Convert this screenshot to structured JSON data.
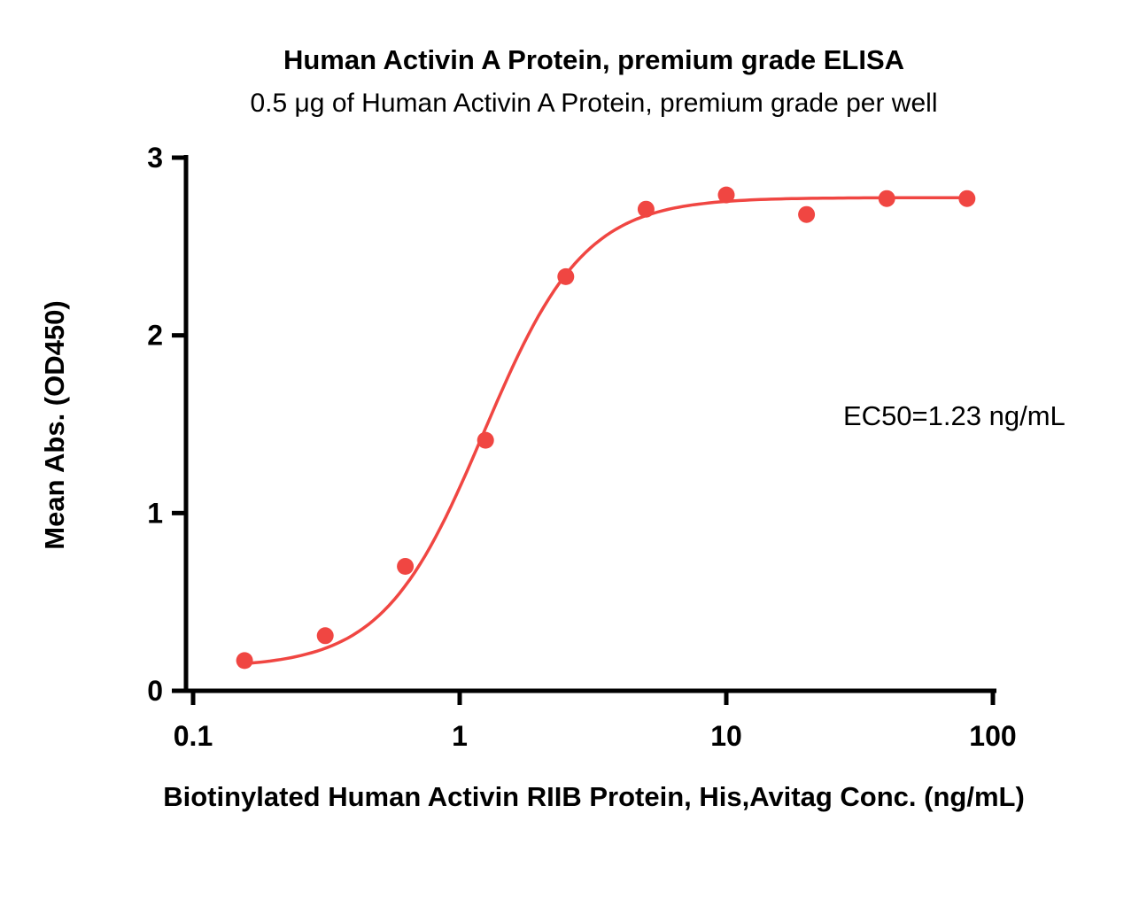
{
  "chart_data": {
    "type": "scatter",
    "title": "Human Activin A Protein, premium grade ELISA",
    "subtitle": "0.5 μg of Human Activin A Protein, premium grade per well",
    "xlabel": "Biotinylated Human Activin RIIB Protein, His,Avitag Conc. (ng/mL)",
    "ylabel": "Mean Abs. (OD450)",
    "annotation": "EC50=1.23 ng/mL",
    "x_scale": "log",
    "xlim": [
      0.1,
      100
    ],
    "ylim": [
      0,
      3
    ],
    "x_ticks": [
      0.1,
      1,
      10,
      100
    ],
    "x_tick_labels": [
      "0.1",
      "1",
      "10",
      "100"
    ],
    "y_ticks": [
      0,
      1,
      2,
      3
    ],
    "y_tick_labels": [
      "0",
      "1",
      "2",
      "3"
    ],
    "points": [
      {
        "x": 0.156,
        "y": 0.17
      },
      {
        "x": 0.313,
        "y": 0.31
      },
      {
        "x": 0.625,
        "y": 0.7
      },
      {
        "x": 1.25,
        "y": 1.41
      },
      {
        "x": 2.5,
        "y": 2.33
      },
      {
        "x": 5,
        "y": 2.71
      },
      {
        "x": 10,
        "y": 2.79
      },
      {
        "x": 20,
        "y": 2.68
      },
      {
        "x": 40,
        "y": 2.77
      },
      {
        "x": 80,
        "y": 2.77
      }
    ],
    "curve_fit": {
      "model": "4PL",
      "bottom": 0.13,
      "top": 2.775,
      "ec50": 1.23,
      "hill": 2.3
    },
    "marker_color": "#f04642",
    "line_color": "#f04642",
    "axis_color": "#000000",
    "legend": "none",
    "grid": "off"
  }
}
